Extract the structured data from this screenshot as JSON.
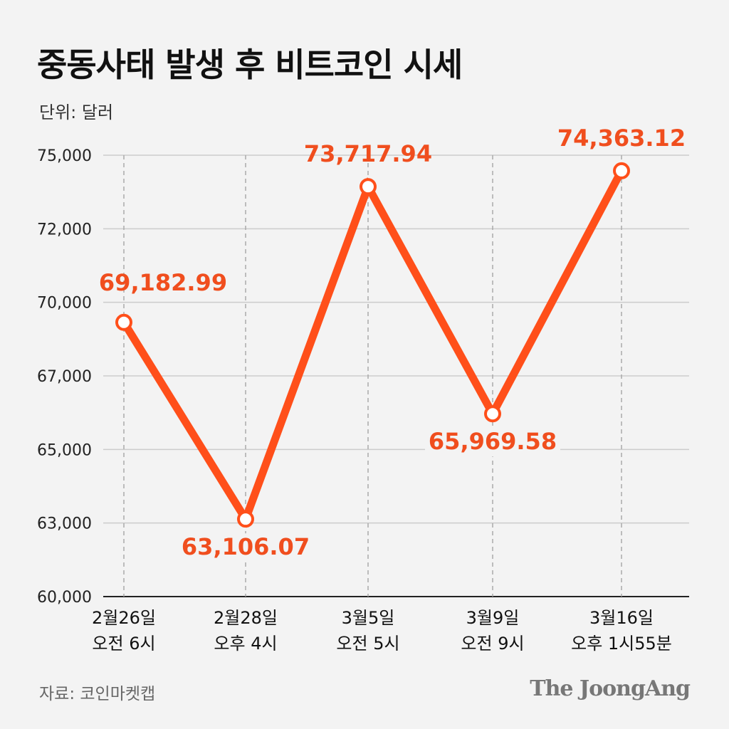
{
  "title": "중동사태 발생 후 비트코인 시세",
  "unit": "단위: 달러",
  "source": "자료: 코인마켓캡",
  "logo": "The JoongAng",
  "colors": {
    "line": "#FF4F1A",
    "label": "#F04E1E",
    "grid": "#cccccc"
  },
  "chart_data": {
    "type": "line",
    "title": "중동사태 발생 후 비트코인 시세",
    "ylabel": "단위: 달러",
    "yticks": [
      60000,
      63000,
      65000,
      67000,
      70000,
      72000,
      75000
    ],
    "ytick_labels": [
      "60,000",
      "63,000",
      "65,000",
      "67,000",
      "70,000",
      "72,000",
      "75,000"
    ],
    "ylim": [
      60000,
      75000
    ],
    "grid": true,
    "categories": [
      [
        "2월26일",
        "오전 6시"
      ],
      [
        "2월28일",
        "오후 4시"
      ],
      [
        "3월5일",
        "오전 5시"
      ],
      [
        "3월9일",
        "오전 9시"
      ],
      [
        "3월16일",
        "오후 1시55분"
      ]
    ],
    "values": [
      69182.99,
      63106.07,
      73717.94,
      65969.58,
      74363.12
    ],
    "data_labels": [
      "69,182.99",
      "63,106.07",
      "73,717.94",
      "65,969.58",
      "74,363.12"
    ]
  }
}
